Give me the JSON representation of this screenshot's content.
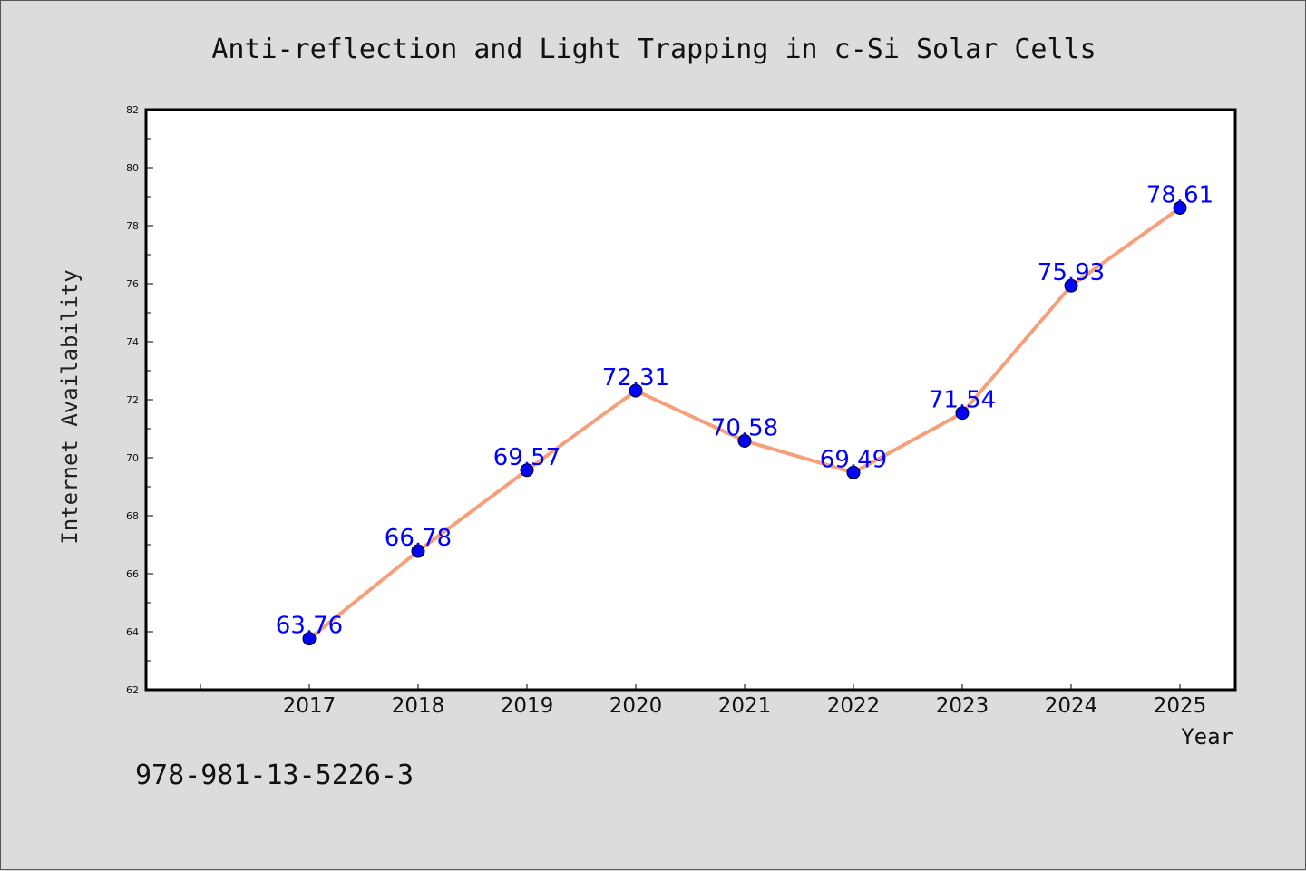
{
  "chart_data": {
    "type": "line",
    "title": "Anti-reflection and Light Trapping in c-Si Solar Cells",
    "xlabel": "Year",
    "ylabel": "Internet Availability",
    "categories": [
      "2017",
      "2018",
      "2019",
      "2020",
      "2021",
      "2022",
      "2023",
      "2024",
      "2025"
    ],
    "series": [
      {
        "values": [
          63.76,
          66.78,
          69.57,
          72.31,
          70.58,
          69.49,
          71.54,
          75.93,
          78.61
        ],
        "data_labels": [
          "63.76",
          "66.78",
          "69.57",
          "72.31",
          "70.58",
          "69.49",
          "71.54",
          "75.93",
          "78.61"
        ]
      }
    ],
    "ylim": [
      62,
      82
    ],
    "yticks": [
      "62",
      "64",
      "66",
      "68",
      "70",
      "72",
      "74",
      "76",
      "78",
      "80",
      "82"
    ],
    "grid": false,
    "line_color": "#f4a07c",
    "marker_color": "#0000ff",
    "label_color": "#0000ff"
  },
  "footer": {
    "isbn": "978-981-13-5226-3"
  }
}
